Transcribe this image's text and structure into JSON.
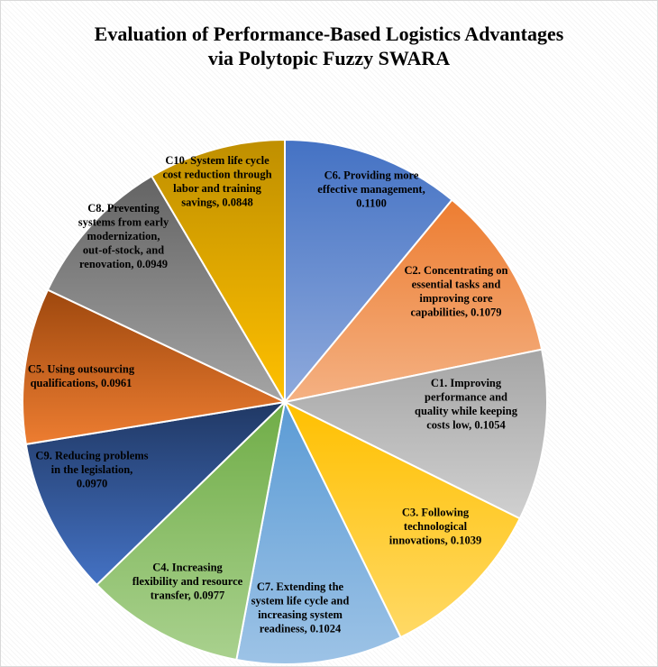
{
  "chart_data": {
    "type": "pie",
    "title": "Evaluation of Performance-Based Logistics Advantages via Polytopic Fuzzy SWARA",
    "title_lines": [
      "Evaluation of Performance-Based Logistics Advantages",
      "via Polytopic Fuzzy SWARA"
    ],
    "slices": [
      {
        "label": "C6. Providing more effective management, 0.1100",
        "label_lines": [
          "C6. Providing more",
          "effective management,",
          "0.1100"
        ],
        "value": 0.11,
        "color_top": "#4472c4",
        "color_bottom": "#8faadc"
      },
      {
        "label": "C2. Concentrating on essential tasks and improving core capabilities, 0.1079",
        "label_lines": [
          "C2. Concentrating on",
          "essential tasks and",
          "improving core",
          "capabilities, 0.1079"
        ],
        "value": 0.1079,
        "color_top": "#ed7d31",
        "color_bottom": "#f4b183"
      },
      {
        "label": "C1. Improving performance and quality while keeping costs low, 0.1054",
        "label_lines": [
          "C1. Improving",
          "performance and",
          "quality while keeping",
          "costs low, 0.1054"
        ],
        "value": 0.1054,
        "color_top": "#a5a5a5",
        "color_bottom": "#d0d0d0"
      },
      {
        "label": "C3. Following technological innovations, 0.1039",
        "label_lines": [
          "C3. Following",
          "technological",
          "innovations, 0.1039"
        ],
        "value": 0.1039,
        "color_top": "#ffc000",
        "color_bottom": "#ffd966"
      },
      {
        "label": "C7. Extending the system life cycle and increasing system readiness, 0.1024",
        "label_lines": [
          "C7. Extending the",
          "system life cycle and",
          "increasing system",
          "readiness, 0.1024"
        ],
        "value": 0.1024,
        "color_top": "#5b9bd5",
        "color_bottom": "#9dc3e6"
      },
      {
        "label": "C4. Increasing flexibility and resource transfer, 0.0977",
        "label_lines": [
          "C4. Increasing",
          "flexibility and resource",
          "transfer, 0.0977"
        ],
        "value": 0.0977,
        "color_top": "#70ad47",
        "color_bottom": "#a9d18e"
      },
      {
        "label": "C9. Reducing problems in the legislation, 0.0970",
        "label_lines": [
          "C9. Reducing problems",
          "in the legislation,",
          "0.0970"
        ],
        "value": 0.097,
        "color_top": "#203864",
        "color_bottom": "#4472c4"
      },
      {
        "label": "C5. Using outsourcing qualifications, 0.0961",
        "label_lines": [
          "C5. Using outsourcing",
          "qualifications, 0.0961"
        ],
        "value": 0.0961,
        "color_top": "#9e480e",
        "color_bottom": "#ed7d31"
      },
      {
        "label": "C8. Preventing systems from early modernization, out-of-stock, and renovation, 0.0949",
        "label_lines": [
          "C8. Preventing",
          "systems from early",
          "modernization,",
          "out-of-stock, and",
          "renovation, 0.0949"
        ],
        "value": 0.0949,
        "color_top": "#636363",
        "color_bottom": "#a5a5a5"
      },
      {
        "label": "C10. System life cycle cost reduction through labor and training savings, 0.0848",
        "label_lines": [
          "C10. System life cycle",
          "cost reduction through",
          "labor and training",
          "savings, 0.0848"
        ],
        "value": 0.0848,
        "color_top": "#bf8f00",
        "color_bottom": "#ffc000"
      }
    ],
    "slice_border_color": "#ffffff",
    "legend": "none",
    "labels": "inside"
  }
}
